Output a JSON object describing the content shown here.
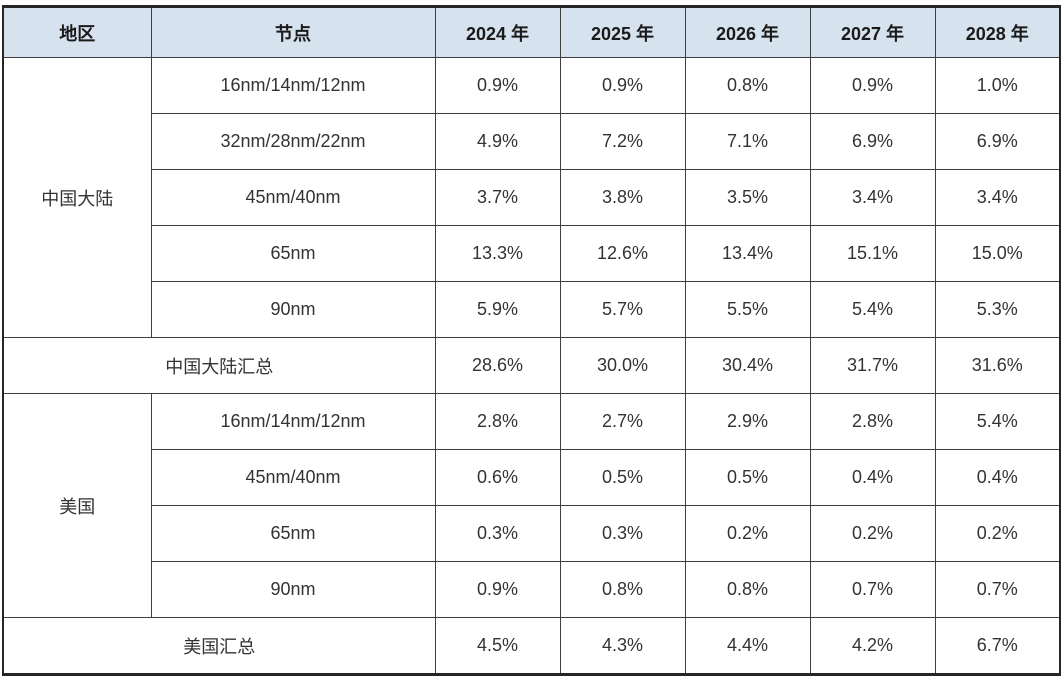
{
  "colors": {
    "header_bg": "#d6e3ef",
    "grid_border": "#3f3f3f",
    "outer_border": "#262626",
    "header_text": "#1a1a1a",
    "body_text": "#333333"
  },
  "chart_data": {
    "type": "table",
    "columns": {
      "region": "地区",
      "node": "节点",
      "years": [
        "2024 年",
        "2025 年",
        "2026 年",
        "2027 年",
        "2028 年"
      ]
    },
    "sections": [
      {
        "region": "中国大陆",
        "rows": [
          {
            "node": "16nm/14nm/12nm",
            "values": [
              "0.9%",
              "0.9%",
              "0.8%",
              "0.9%",
              "1.0%"
            ]
          },
          {
            "node": "32nm/28nm/22nm",
            "values": [
              "4.9%",
              "7.2%",
              "7.1%",
              "6.9%",
              "6.9%"
            ]
          },
          {
            "node": "45nm/40nm",
            "values": [
              "3.7%",
              "3.8%",
              "3.5%",
              "3.4%",
              "3.4%"
            ]
          },
          {
            "node": "65nm",
            "values": [
              "13.3%",
              "12.6%",
              "13.4%",
              "15.1%",
              "15.0%"
            ]
          },
          {
            "node": "90nm",
            "values": [
              "5.9%",
              "5.7%",
              "5.5%",
              "5.4%",
              "5.3%"
            ]
          }
        ],
        "summary": {
          "label": "中国大陆汇总",
          "values": [
            "28.6%",
            "30.0%",
            "30.4%",
            "31.7%",
            "31.6%"
          ]
        }
      },
      {
        "region": "美国",
        "rows": [
          {
            "node": "16nm/14nm/12nm",
            "values": [
              "2.8%",
              "2.7%",
              "2.9%",
              "2.8%",
              "5.4%"
            ]
          },
          {
            "node": "45nm/40nm",
            "values": [
              "0.6%",
              "0.5%",
              "0.5%",
              "0.4%",
              "0.4%"
            ]
          },
          {
            "node": "65nm",
            "values": [
              "0.3%",
              "0.3%",
              "0.2%",
              "0.2%",
              "0.2%"
            ]
          },
          {
            "node": "90nm",
            "values": [
              "0.9%",
              "0.8%",
              "0.8%",
              "0.7%",
              "0.7%"
            ]
          }
        ],
        "summary": {
          "label": "美国汇总",
          "values": [
            "4.5%",
            "4.3%",
            "4.4%",
            "4.2%",
            "6.7%"
          ]
        }
      }
    ]
  }
}
